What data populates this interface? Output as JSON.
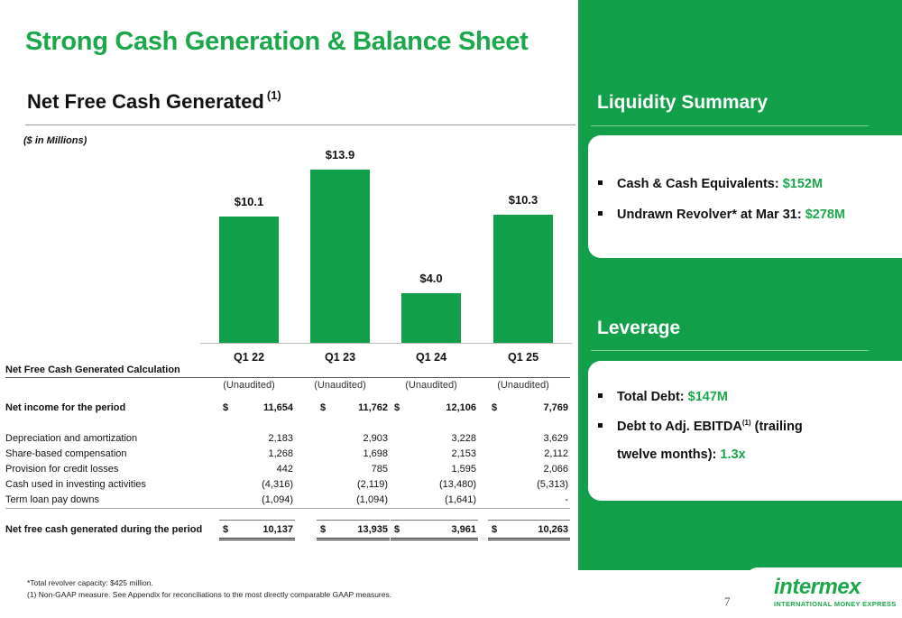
{
  "title": "Strong Cash Generation & Balance Sheet",
  "subtitle": "Net Free Cash Generated",
  "subtitle_sup": "(1)",
  "units": "($ in Millions)",
  "chart_data": {
    "type": "bar",
    "categories": [
      "Q1 22",
      "Q1 23",
      "Q1 24",
      "Q1 25"
    ],
    "values": [
      10.1,
      13.9,
      4.0,
      10.3
    ],
    "value_labels": [
      "$10.1",
      "$13.9",
      "$4.0",
      "$10.3"
    ],
    "ylim": [
      0,
      15
    ],
    "color": "#11a049"
  },
  "table": {
    "title": "Net Free Cash Generated Calculation",
    "headers": [
      "(Unaudited)",
      "(Unaudited)",
      "(Unaudited)",
      "(Unaudited)"
    ],
    "net_income": {
      "label": "Net income for the period",
      "values": [
        "11,654",
        "11,762",
        "12,106",
        "7,769"
      ]
    },
    "rows": [
      {
        "label": "Depreciation and amortization",
        "values": [
          "2,183",
          "2,903",
          "3,228",
          "3,629"
        ]
      },
      {
        "label": "Share-based compensation",
        "values": [
          "1,268",
          "1,698",
          "2,153",
          "2,112"
        ]
      },
      {
        "label": "Provision for credit losses",
        "values": [
          "442",
          "785",
          "1,595",
          "2,066"
        ]
      },
      {
        "label": "Cash used in investing activities",
        "values": [
          "(4,316)",
          "(2,119)",
          "(13,480)",
          "(5,313)"
        ]
      },
      {
        "label": "Term loan pay downs",
        "values": [
          "(1,094)",
          "(1,094)",
          "(1,641)",
          "-"
        ]
      }
    ],
    "total": {
      "label": "Net free cash generated during the period",
      "values": [
        "10,137",
        "13,935",
        "3,961",
        "10,263"
      ]
    },
    "currency": "$"
  },
  "footnotes": [
    "*Total revolver capacity: $425 million.",
    "(1) Non-GAAP measure. See Appendix for reconciliations to the most directly comparable GAAP measures."
  ],
  "liquidity": {
    "heading": "Liquidity Summary",
    "items": [
      {
        "label": "Cash & Cash Equivalents: ",
        "value": "$152M"
      },
      {
        "label": "Undrawn Revolver* at Mar 31: ",
        "value": "$278M"
      }
    ]
  },
  "leverage": {
    "heading": "Leverage",
    "item1_label": "Total Debt: ",
    "item1_value": "$147M",
    "item2_label": "Debt to Adj. EBITDA",
    "item2_sup": "(1)",
    "item2_rest": " (trailing",
    "item2_line2": "twelve months): ",
    "item2_value": "1.3x"
  },
  "page_number": "7",
  "logo": {
    "word": "intermex",
    "tagline": "INTERNATIONAL MONEY EXPRESS"
  },
  "colors": {
    "brand_green": "#1ba84a",
    "panel_green": "#11a049"
  }
}
